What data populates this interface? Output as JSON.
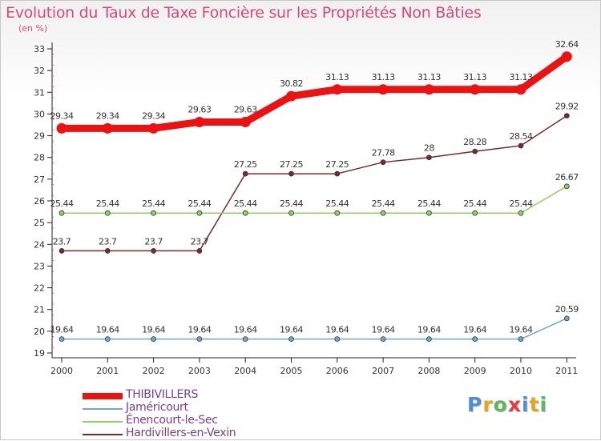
{
  "title": "Evolution du Taux de Taxe Foncière sur les Propriétés Non Bâties",
  "unit_label": "(en %)",
  "logo": {
    "letters": [
      "P",
      "r",
      "o",
      "x",
      "i",
      "t",
      "i"
    ],
    "colors": [
      "#4a90d9",
      "#e8a21c",
      "#5cb85c",
      "#e83c3c",
      "#4a90d9",
      "#e8a21c",
      "#5cb85c"
    ]
  },
  "chart_data": {
    "type": "line",
    "title": "Evolution du Taux de Taxe Foncière sur les Propriétés Non Bâties",
    "ylabel": "(en %)",
    "xlabel": "",
    "categories": [
      "2000",
      "2001",
      "2002",
      "2003",
      "2004",
      "2005",
      "2006",
      "2007",
      "2008",
      "2009",
      "2010",
      "2011"
    ],
    "ylim": [
      19,
      33
    ],
    "yticks": [
      "19",
      "20",
      "21",
      "22",
      "23",
      "24",
      "25",
      "26",
      "27",
      "28",
      "29",
      "30",
      "31",
      "32",
      "33"
    ],
    "grid": false,
    "legend_position": "bottom-left",
    "series": [
      {
        "name": "Hardivillers-en-Vexin",
        "color": "#7b2a2a",
        "width": "thin",
        "values": [
          23.7,
          23.7,
          23.7,
          23.7,
          27.25,
          27.25,
          27.25,
          27.78,
          28,
          28.28,
          28.54,
          29.92
        ],
        "labels": [
          "23.7",
          "23.7",
          "23.7",
          "23.7",
          "27.25",
          "27.25",
          "27.25",
          "27.78",
          "28",
          "28.28",
          "28.54",
          "29.92"
        ]
      },
      {
        "name": "Énencourt-le-Sec",
        "color": "#8fd45a",
        "width": "thin",
        "values": [
          25.44,
          25.44,
          25.44,
          25.44,
          25.44,
          25.44,
          25.44,
          25.44,
          25.44,
          25.44,
          25.44,
          26.67
        ],
        "labels": [
          "25.44",
          "25.44",
          "25.44",
          "25.44",
          "25.44",
          "25.44",
          "25.44",
          "25.44",
          "25.44",
          "25.44",
          "25.44",
          "26.67"
        ]
      },
      {
        "name": "Jaméricourt",
        "color": "#6fa6d6",
        "width": "thin",
        "values": [
          19.64,
          19.64,
          19.64,
          19.64,
          19.64,
          19.64,
          19.64,
          19.64,
          19.64,
          19.64,
          19.64,
          20.59
        ],
        "labels": [
          "19.64",
          "19.64",
          "19.64",
          "19.64",
          "19.64",
          "19.64",
          "19.64",
          "19.64",
          "19.64",
          "19.64",
          "19.64",
          "20.59"
        ]
      },
      {
        "name": "THIBIVILLERS",
        "color": "#ee1111",
        "width": "thick",
        "values": [
          29.34,
          29.34,
          29.34,
          29.63,
          29.63,
          30.82,
          31.13,
          31.13,
          31.13,
          31.13,
          31.13,
          32.64
        ],
        "labels": [
          "29.34",
          "29.34",
          "29.34",
          "29.63",
          "29.63",
          "30.82",
          "31.13",
          "31.13",
          "31.13",
          "31.13",
          "31.13",
          "32.64"
        ]
      }
    ],
    "legend": [
      "THIBIVILLERS",
      "Jaméricourt",
      "Énencourt-le-Sec",
      "Hardivillers-en-Vexin"
    ]
  }
}
